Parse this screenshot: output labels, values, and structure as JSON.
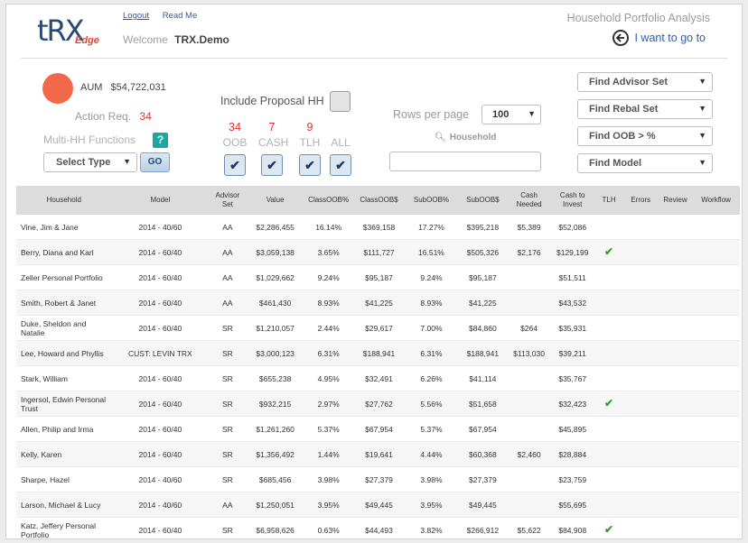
{
  "header": {
    "logo_main": "tRX",
    "logo_sub": "Edge",
    "logout_label": "Logout",
    "readme_label": "Read Me",
    "welcome_label": "Welcome",
    "user_name": "TRX.Demo",
    "app_title": "Household Portfolio Analysis",
    "want_label": "I want to go to"
  },
  "summary": {
    "aum_label": "AUM",
    "aum_value": "$54,722,031",
    "action_label": "Action Req.",
    "action_value": "34",
    "multi_label": "Multi-HH Functions",
    "help_label": "?",
    "select_type_label": "Select Type",
    "go_label": "GO",
    "include_label": "Include Proposal HH"
  },
  "filters": [
    {
      "count": "34",
      "label": "OOB"
    },
    {
      "count": "7",
      "label": "CASH"
    },
    {
      "count": "9",
      "label": "TLH"
    },
    {
      "count": "",
      "label": "ALL"
    }
  ],
  "paging": {
    "rows_label": "Rows per page",
    "rows_value": "100",
    "household_label": "Household"
  },
  "finders": [
    {
      "label": "Find Advisor Set"
    },
    {
      "label": "Find Rebal Set"
    },
    {
      "label": "Find OOB > %"
    },
    {
      "label": "Find Model"
    }
  ],
  "table": {
    "columns": [
      "Household",
      "Model",
      "Advisor Set",
      "Value",
      "ClassOOB%",
      "ClassOOB$",
      "SubOOB%",
      "SubOOB$",
      "Cash Needed",
      "Cash to Invest",
      "TLH",
      "Errors",
      "Review",
      "Workflow"
    ],
    "rows": [
      {
        "household": "Vine, Jim & Jane",
        "model": "2014 - 40/60",
        "advisor_set": "AA",
        "value": "$2,286,455",
        "class_oob_pct": "16.14%",
        "class_oob_usd": "$369,158",
        "sub_oob_pct": "17.27%",
        "sub_oob_usd": "$395,218",
        "cash_needed": "$5,389",
        "cash_to_invest": "$52,086",
        "tlh": false
      },
      {
        "household": "Berry, Diana and Karl",
        "model": "2014 - 60/40",
        "advisor_set": "AA",
        "value": "$3,059,138",
        "class_oob_pct": "3.65%",
        "class_oob_usd": "$111,727",
        "sub_oob_pct": "16.51%",
        "sub_oob_usd": "$505,326",
        "cash_needed": "$2,176",
        "cash_to_invest": "$129,199",
        "tlh": true
      },
      {
        "household": "Zeller Personal Portfolio",
        "model": "2014 - 60/40",
        "advisor_set": "AA",
        "value": "$1,029,662",
        "class_oob_pct": "9.24%",
        "class_oob_usd": "$95,187",
        "sub_oob_pct": "9.24%",
        "sub_oob_usd": "$95,187",
        "cash_needed": "",
        "cash_to_invest": "$51,511",
        "tlh": false
      },
      {
        "household": "Smith, Robert & Janet",
        "model": "2014 - 60/40",
        "advisor_set": "AA",
        "value": "$461,430",
        "class_oob_pct": "8.93%",
        "class_oob_usd": "$41,225",
        "sub_oob_pct": "8.93%",
        "sub_oob_usd": "$41,225",
        "cash_needed": "",
        "cash_to_invest": "$43,532",
        "tlh": false
      },
      {
        "household": "Duke, Sheldon and Natalie",
        "model": "2014 - 60/40",
        "advisor_set": "SR",
        "value": "$1,210,057",
        "class_oob_pct": "2.44%",
        "class_oob_usd": "$29,617",
        "sub_oob_pct": "7.00%",
        "sub_oob_usd": "$84,860",
        "cash_needed": "$264",
        "cash_to_invest": "$35,931",
        "tlh": false
      },
      {
        "household": "Lee, Howard and Phyllis",
        "model": "CUST: LEVIN TRX",
        "advisor_set": "SR",
        "value": "$3,000,123",
        "class_oob_pct": "6.31%",
        "class_oob_usd": "$188,941",
        "sub_oob_pct": "6.31%",
        "sub_oob_usd": "$188,941",
        "cash_needed": "$113,030",
        "cash_to_invest": "$39,211",
        "tlh": false
      },
      {
        "household": "Stark, William",
        "model": "2014 - 60/40",
        "advisor_set": "SR",
        "value": "$655,238",
        "class_oob_pct": "4.95%",
        "class_oob_usd": "$32,491",
        "sub_oob_pct": "6.26%",
        "sub_oob_usd": "$41,114",
        "cash_needed": "",
        "cash_to_invest": "$35,767",
        "tlh": false
      },
      {
        "household": "Ingersol, Edwin Personal Trust",
        "model": "2014 - 60/40",
        "advisor_set": "SR",
        "value": "$932,215",
        "class_oob_pct": "2.97%",
        "class_oob_usd": "$27,762",
        "sub_oob_pct": "5.56%",
        "sub_oob_usd": "$51,658",
        "cash_needed": "",
        "cash_to_invest": "$32,423",
        "tlh": true
      },
      {
        "household": "Allen, Philip and Irma",
        "model": "2014 - 60/40",
        "advisor_set": "SR",
        "value": "$1,261,260",
        "class_oob_pct": "5.37%",
        "class_oob_usd": "$67,954",
        "sub_oob_pct": "5.37%",
        "sub_oob_usd": "$67,954",
        "cash_needed": "",
        "cash_to_invest": "$45,895",
        "tlh": false
      },
      {
        "household": "Kelly, Karen",
        "model": "2014 - 60/40",
        "advisor_set": "SR",
        "value": "$1,356,492",
        "class_oob_pct": "1.44%",
        "class_oob_usd": "$19,641",
        "sub_oob_pct": "4.44%",
        "sub_oob_usd": "$60,368",
        "cash_needed": "$2,460",
        "cash_to_invest": "$28,884",
        "tlh": false
      },
      {
        "household": "Sharpe, Hazel",
        "model": "2014 - 40/60",
        "advisor_set": "SR",
        "value": "$685,456",
        "class_oob_pct": "3.98%",
        "class_oob_usd": "$27,379",
        "sub_oob_pct": "3.98%",
        "sub_oob_usd": "$27,379",
        "cash_needed": "",
        "cash_to_invest": "$23,759",
        "tlh": false
      },
      {
        "household": "Larson, Michael & Lucy",
        "model": "2014 - 40/60",
        "advisor_set": "AA",
        "value": "$1,250,051",
        "class_oob_pct": "3.95%",
        "class_oob_usd": "$49,445",
        "sub_oob_pct": "3.95%",
        "sub_oob_usd": "$49,445",
        "cash_needed": "",
        "cash_to_invest": "$55,695",
        "tlh": false
      },
      {
        "household": "Katz, Jeffery Personal Portfolio",
        "model": "2014 - 60/40",
        "advisor_set": "SR",
        "value": "$6,958,626",
        "class_oob_pct": "0.63%",
        "class_oob_usd": "$44,493",
        "sub_oob_pct": "3.82%",
        "sub_oob_usd": "$266,912",
        "cash_needed": "$5,622",
        "cash_to_invest": "$84,908",
        "tlh": true
      }
    ]
  }
}
